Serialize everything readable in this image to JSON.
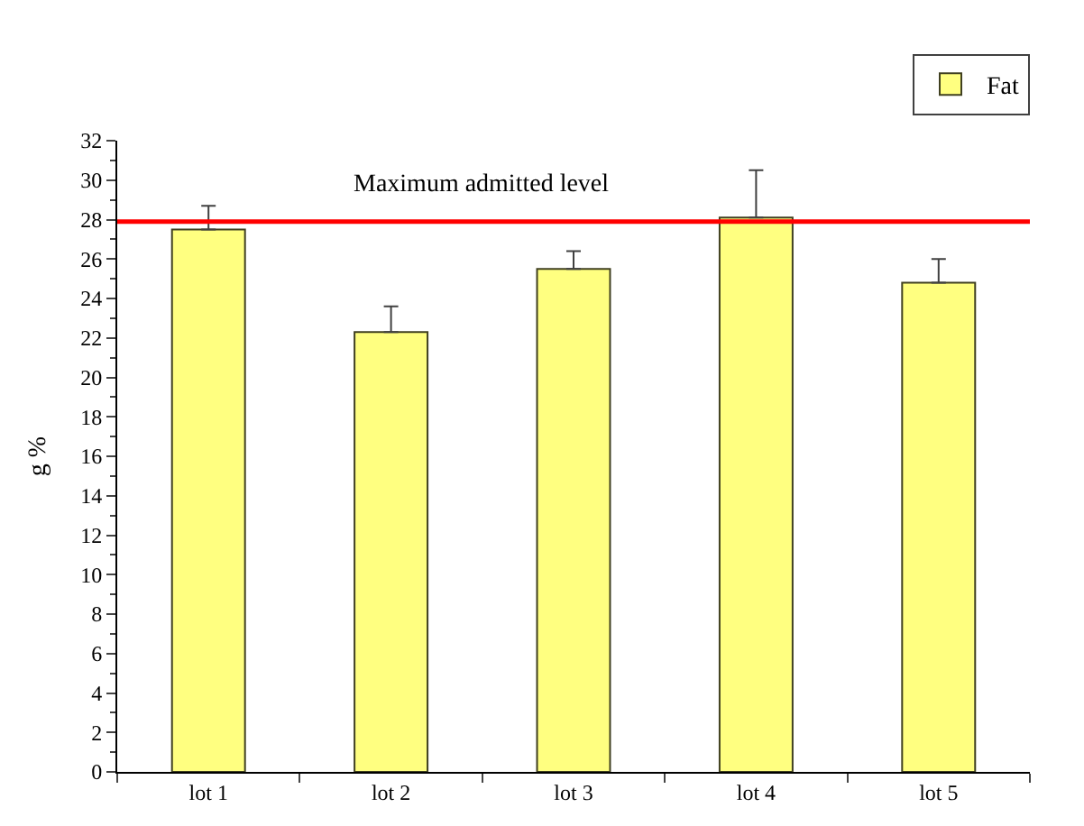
{
  "chart_data": {
    "type": "bar",
    "ylabel": "g %",
    "categories": [
      "lot 1",
      "lot 2",
      "lot 3",
      "lot 4",
      "lot 5"
    ],
    "series": [
      {
        "name": "Fat",
        "color": "#ffff80",
        "values": [
          27.5,
          22.3,
          25.5,
          28.1,
          24.8
        ],
        "errors": [
          [
            27.5,
            28.7
          ],
          [
            22.3,
            23.6
          ],
          [
            25.5,
            26.4
          ],
          [
            28.1,
            30.5
          ],
          [
            24.8,
            26.0
          ]
        ]
      }
    ],
    "ylim": [
      0,
      32
    ],
    "yticks": [
      0,
      2,
      4,
      6,
      8,
      10,
      12,
      14,
      16,
      18,
      20,
      22,
      24,
      26,
      28,
      30,
      32
    ],
    "ref_lines": [
      {
        "axis": "y",
        "value": 27.9,
        "label": "Maximum admitted level",
        "color": "#ff0000"
      }
    ],
    "legend": "top right"
  }
}
